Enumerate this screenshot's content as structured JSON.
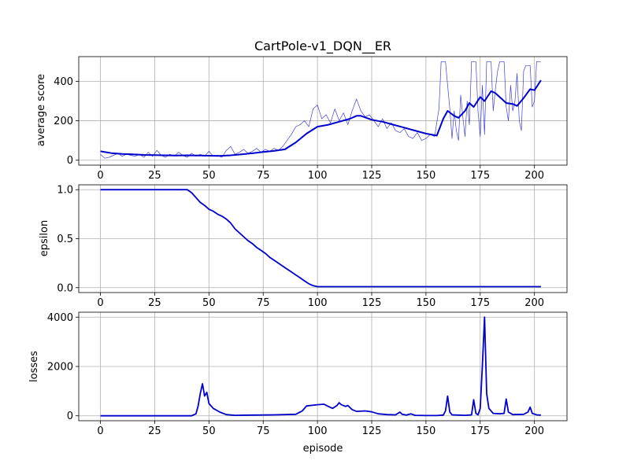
{
  "chart_data": [
    {
      "type": "line",
      "title": "CartPole-v1_DQN__ER",
      "xlabel": "",
      "ylabel": "average score",
      "xlim": [
        -10,
        215
      ],
      "ylim": [
        -25,
        525
      ],
      "xticks": [
        0,
        25,
        50,
        75,
        100,
        125,
        150,
        175,
        200
      ],
      "yticks": [
        0,
        200,
        400
      ],
      "grid": true,
      "series": [
        {
          "color": "#0000cd",
          "style": "thin",
          "points": [
            [
              0,
              30
            ],
            [
              2,
              10
            ],
            [
              4,
              15
            ],
            [
              6,
              25
            ],
            [
              8,
              35
            ],
            [
              10,
              20
            ],
            [
              12,
              30
            ],
            [
              14,
              25
            ],
            [
              16,
              20
            ],
            [
              18,
              30
            ],
            [
              20,
              15
            ],
            [
              22,
              40
            ],
            [
              24,
              20
            ],
            [
              26,
              50
            ],
            [
              28,
              25
            ],
            [
              30,
              15
            ],
            [
              32,
              30
            ],
            [
              34,
              20
            ],
            [
              36,
              40
            ],
            [
              38,
              25
            ],
            [
              40,
              15
            ],
            [
              42,
              35
            ],
            [
              44,
              20
            ],
            [
              46,
              30
            ],
            [
              48,
              20
            ],
            [
              50,
              45
            ],
            [
              52,
              20
            ],
            [
              54,
              25
            ],
            [
              56,
              15
            ],
            [
              58,
              50
            ],
            [
              60,
              70
            ],
            [
              62,
              30
            ],
            [
              64,
              40
            ],
            [
              66,
              55
            ],
            [
              68,
              35
            ],
            [
              70,
              45
            ],
            [
              72,
              60
            ],
            [
              74,
              40
            ],
            [
              76,
              55
            ],
            [
              78,
              45
            ],
            [
              80,
              60
            ],
            [
              82,
              50
            ],
            [
              84,
              70
            ],
            [
              86,
              100
            ],
            [
              88,
              130
            ],
            [
              90,
              170
            ],
            [
              92,
              180
            ],
            [
              94,
              200
            ],
            [
              96,
              170
            ],
            [
              98,
              260
            ],
            [
              100,
              280
            ],
            [
              102,
              210
            ],
            [
              104,
              230
            ],
            [
              106,
              190
            ],
            [
              108,
              260
            ],
            [
              110,
              200
            ],
            [
              112,
              240
            ],
            [
              114,
              180
            ],
            [
              116,
              250
            ],
            [
              118,
              310
            ],
            [
              120,
              250
            ],
            [
              122,
              220
            ],
            [
              124,
              230
            ],
            [
              126,
              200
            ],
            [
              128,
              170
            ],
            [
              130,
              210
            ],
            [
              132,
              160
            ],
            [
              134,
              190
            ],
            [
              136,
              150
            ],
            [
              138,
              140
            ],
            [
              140,
              160
            ],
            [
              142,
              120
            ],
            [
              144,
              110
            ],
            [
              146,
              140
            ],
            [
              148,
              100
            ],
            [
              150,
              110
            ],
            [
              152,
              130
            ],
            [
              154,
              120
            ],
            [
              156,
              260
            ],
            [
              157,
              500
            ],
            [
              159,
              500
            ],
            [
              160,
              380
            ],
            [
              161,
              260
            ],
            [
              162,
              110
            ],
            [
              163,
              250
            ],
            [
              164,
              150
            ],
            [
              165,
              100
            ],
            [
              166,
              330
            ],
            [
              167,
              220
            ],
            [
              168,
              120
            ],
            [
              169,
              300
            ],
            [
              170,
              180
            ],
            [
              171,
              500
            ],
            [
              173,
              500
            ],
            [
              174,
              250
            ],
            [
              175,
              120
            ],
            [
              176,
              380
            ],
            [
              177,
              130
            ],
            [
              178,
              500
            ],
            [
              180,
              500
            ],
            [
              181,
              250
            ],
            [
              182,
              360
            ],
            [
              183,
              450
            ],
            [
              184,
              500
            ],
            [
              186,
              500
            ],
            [
              187,
              270
            ],
            [
              188,
              200
            ],
            [
              189,
              380
            ],
            [
              190,
              250
            ],
            [
              191,
              300
            ],
            [
              192,
              440
            ],
            [
              193,
              200
            ],
            [
              194,
              150
            ],
            [
              195,
              450
            ],
            [
              196,
              480
            ],
            [
              198,
              480
            ],
            [
              199,
              270
            ],
            [
              200,
              300
            ],
            [
              201,
              500
            ],
            [
              203,
              500
            ]
          ]
        },
        {
          "color": "#0000cd",
          "style": "thick",
          "points": [
            [
              0,
              45
            ],
            [
              5,
              36
            ],
            [
              10,
              32
            ],
            [
              15,
              30
            ],
            [
              20,
              27
            ],
            [
              25,
              26
            ],
            [
              30,
              25
            ],
            [
              35,
              24
            ],
            [
              40,
              25
            ],
            [
              45,
              24
            ],
            [
              50,
              23
            ],
            [
              55,
              22
            ],
            [
              60,
              25
            ],
            [
              65,
              30
            ],
            [
              70,
              35
            ],
            [
              75,
              42
            ],
            [
              80,
              47
            ],
            [
              85,
              55
            ],
            [
              90,
              90
            ],
            [
              95,
              135
            ],
            [
              100,
              170
            ],
            [
              105,
              180
            ],
            [
              110,
              195
            ],
            [
              115,
              210
            ],
            [
              118,
              225
            ],
            [
              120,
              225
            ],
            [
              125,
              205
            ],
            [
              130,
              195
            ],
            [
              135,
              180
            ],
            [
              140,
              165
            ],
            [
              145,
              150
            ],
            [
              150,
              135
            ],
            [
              155,
              125
            ],
            [
              158,
              210
            ],
            [
              160,
              250
            ],
            [
              163,
              225
            ],
            [
              165,
              215
            ],
            [
              168,
              250
            ],
            [
              170,
              290
            ],
            [
              172,
              270
            ],
            [
              175,
              320
            ],
            [
              177,
              300
            ],
            [
              180,
              350
            ],
            [
              182,
              340
            ],
            [
              185,
              310
            ],
            [
              187,
              290
            ],
            [
              190,
              285
            ],
            [
              192,
              275
            ],
            [
              195,
              315
            ],
            [
              198,
              360
            ],
            [
              200,
              355
            ],
            [
              203,
              405
            ]
          ]
        }
      ]
    },
    {
      "type": "line",
      "title": "",
      "xlabel": "",
      "ylabel": "epsilon",
      "xlim": [
        -10,
        215
      ],
      "ylim": [
        -0.05,
        1.05
      ],
      "xticks": [
        0,
        25,
        50,
        75,
        100,
        125,
        150,
        175,
        200
      ],
      "yticks": [
        0.0,
        0.5,
        1.0
      ],
      "ytick_labels": [
        "0.0",
        "0.5",
        "1.0"
      ],
      "grid": true,
      "series": [
        {
          "color": "#0000cd",
          "style": "normal",
          "points": [
            [
              0,
              1.0
            ],
            [
              40,
              1.0
            ],
            [
              42,
              0.97
            ],
            [
              44,
              0.92
            ],
            [
              46,
              0.87
            ],
            [
              48,
              0.84
            ],
            [
              50,
              0.8
            ],
            [
              52,
              0.78
            ],
            [
              54,
              0.75
            ],
            [
              56,
              0.73
            ],
            [
              58,
              0.7
            ],
            [
              60,
              0.66
            ],
            [
              62,
              0.6
            ],
            [
              64,
              0.56
            ],
            [
              66,
              0.52
            ],
            [
              68,
              0.48
            ],
            [
              70,
              0.45
            ],
            [
              72,
              0.41
            ],
            [
              74,
              0.38
            ],
            [
              76,
              0.35
            ],
            [
              78,
              0.31
            ],
            [
              80,
              0.28
            ],
            [
              82,
              0.25
            ],
            [
              84,
              0.22
            ],
            [
              86,
              0.19
            ],
            [
              88,
              0.16
            ],
            [
              90,
              0.13
            ],
            [
              92,
              0.1
            ],
            [
              94,
              0.07
            ],
            [
              96,
              0.04
            ],
            [
              98,
              0.02
            ],
            [
              100,
              0.01
            ],
            [
              203,
              0.01
            ]
          ]
        }
      ]
    },
    {
      "type": "line",
      "title": "",
      "xlabel": "episode",
      "ylabel": "losses",
      "xlim": [
        -10,
        215
      ],
      "ylim": [
        -200,
        4200
      ],
      "xticks": [
        0,
        25,
        50,
        75,
        100,
        125,
        150,
        175,
        200
      ],
      "yticks": [
        0,
        2000,
        4000
      ],
      "grid": true,
      "series": [
        {
          "color": "#0000cd",
          "style": "normal",
          "points": [
            [
              0,
              0
            ],
            [
              42,
              0
            ],
            [
              44,
              80
            ],
            [
              45,
              400
            ],
            [
              46,
              900
            ],
            [
              47,
              1300
            ],
            [
              48,
              800
            ],
            [
              49,
              950
            ],
            [
              50,
              500
            ],
            [
              52,
              300
            ],
            [
              55,
              150
            ],
            [
              58,
              50
            ],
            [
              62,
              20
            ],
            [
              70,
              30
            ],
            [
              80,
              40
            ],
            [
              90,
              60
            ],
            [
              93,
              200
            ],
            [
              95,
              400
            ],
            [
              100,
              450
            ],
            [
              103,
              470
            ],
            [
              105,
              380
            ],
            [
              107,
              300
            ],
            [
              109,
              420
            ],
            [
              110,
              530
            ],
            [
              111,
              450
            ],
            [
              113,
              380
            ],
            [
              114,
              420
            ],
            [
              116,
              250
            ],
            [
              118,
              180
            ],
            [
              122,
              200
            ],
            [
              125,
              160
            ],
            [
              128,
              80
            ],
            [
              132,
              50
            ],
            [
              136,
              40
            ],
            [
              138,
              150
            ],
            [
              139,
              60
            ],
            [
              141,
              30
            ],
            [
              143,
              80
            ],
            [
              145,
              20
            ],
            [
              150,
              10
            ],
            [
              155,
              10
            ],
            [
              158,
              30
            ],
            [
              159,
              200
            ],
            [
              160,
              800
            ],
            [
              161,
              150
            ],
            [
              162,
              40
            ],
            [
              168,
              20
            ],
            [
              171,
              40
            ],
            [
              172,
              650
            ],
            [
              173,
              100
            ],
            [
              174,
              40
            ],
            [
              175,
              300
            ],
            [
              176,
              2000
            ],
            [
              177,
              4000
            ],
            [
              178,
              900
            ],
            [
              179,
              300
            ],
            [
              181,
              100
            ],
            [
              184,
              80
            ],
            [
              186,
              100
            ],
            [
              187,
              680
            ],
            [
              188,
              150
            ],
            [
              190,
              50
            ],
            [
              195,
              60
            ],
            [
              197,
              150
            ],
            [
              198,
              350
            ],
            [
              199,
              100
            ],
            [
              201,
              40
            ],
            [
              203,
              30
            ]
          ]
        }
      ]
    }
  ]
}
